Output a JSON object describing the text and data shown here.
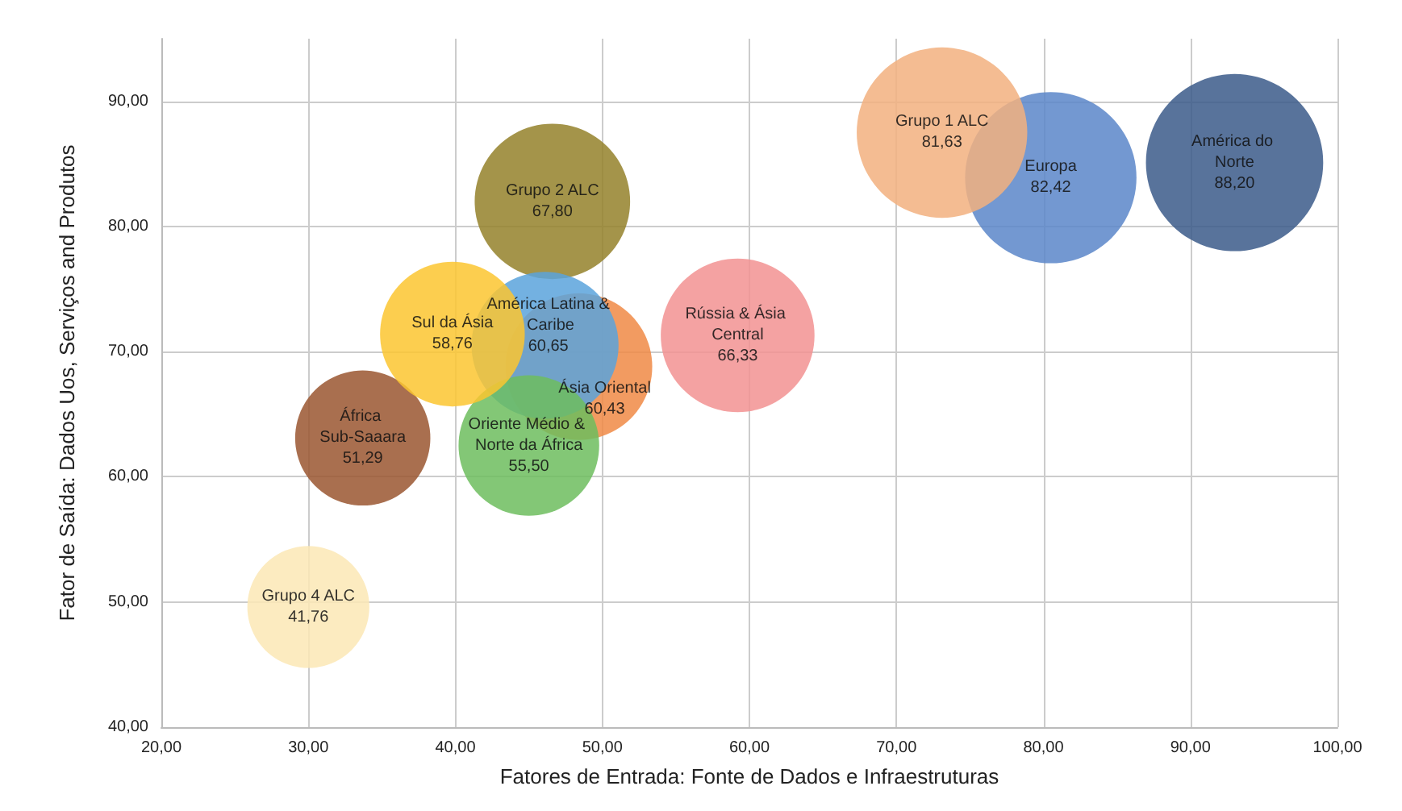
{
  "chart_data": {
    "type": "bubble",
    "xlabel": "Fatores de Entrada: Fonte de Dados e Infraestruturas",
    "ylabel": "Fator de Saída: Dados Uos, Serviços and Produtos",
    "xlim": [
      20,
      100
    ],
    "xticks": [
      {
        "value": 20,
        "label": "20,00"
      },
      {
        "value": 30,
        "label": "30,00"
      },
      {
        "value": 40,
        "label": "40,00"
      },
      {
        "value": 50,
        "label": "50,00"
      },
      {
        "value": 60,
        "label": "60,00"
      },
      {
        "value": 70,
        "label": "70,00"
      },
      {
        "value": 80,
        "label": "80,00"
      },
      {
        "value": 90,
        "label": "90,00"
      },
      {
        "value": 100,
        "label": "100,00"
      }
    ],
    "ylim": [
      40,
      95
    ],
    "yticks": [
      {
        "value": 40,
        "label": "40,00"
      },
      {
        "value": 50,
        "label": "50,00"
      },
      {
        "value": 60,
        "label": "60,00"
      },
      {
        "value": 70,
        "label": "70,00"
      },
      {
        "value": 80,
        "label": "80,00"
      },
      {
        "value": 90,
        "label": "90,00"
      }
    ],
    "grid": true,
    "legend": false,
    "series": [
      {
        "name": "Grupo 4 ALC",
        "color": "#fbe8b5",
        "x": [
          30.0
        ],
        "values": [
          49.6
        ],
        "sizes": [
          41.76
        ],
        "value_labels": [
          "41,76"
        ]
      },
      {
        "name": "África Sub-Saaara",
        "color": "#9a5630",
        "x": [
          33.7
        ],
        "values": [
          63.1
        ],
        "sizes": [
          51.29
        ],
        "value_labels": [
          "51,29"
        ]
      },
      {
        "name": "Grupo 2 ALC",
        "color": "#94812a",
        "x": [
          46.6
        ],
        "values": [
          82.0
        ],
        "sizes": [
          67.8
        ],
        "value_labels": [
          "67,80"
        ]
      },
      {
        "name": "Ásia Oriental",
        "color": "#f08a45",
        "x": [
          48.4
        ],
        "values": [
          68.8
        ],
        "sizes": [
          60.43
        ],
        "value_labels": [
          "60,43"
        ]
      },
      {
        "name": "América Latina & Caribe",
        "color": "#5ba3dc",
        "x": [
          46.1
        ],
        "values": [
          70.5
        ],
        "sizes": [
          60.65
        ],
        "value_labels": [
          "60,65"
        ]
      },
      {
        "name": "Oriente Médio & Norte da África",
        "color": "#6dbd5e",
        "x": [
          45.0
        ],
        "values": [
          62.5
        ],
        "sizes": [
          55.5
        ],
        "value_labels": [
          "55,50"
        ]
      },
      {
        "name": "Sul da Ásia",
        "color": "#fcc630",
        "x": [
          39.8
        ],
        "values": [
          71.4
        ],
        "sizes": [
          58.76
        ],
        "value_labels": [
          "58,76"
        ]
      },
      {
        "name": "Rússia & Ásia Central",
        "color": "#f29292",
        "x": [
          59.2
        ],
        "values": [
          71.3
        ],
        "sizes": [
          66.33
        ],
        "value_labels": [
          "66,33"
        ]
      },
      {
        "name": "Europa",
        "color": "#5a86c9",
        "x": [
          80.5
        ],
        "values": [
          83.9
        ],
        "sizes": [
          82.42
        ],
        "value_labels": [
          "82,42"
        ]
      },
      {
        "name": "Grupo 1 ALC",
        "color": "#f2b07f",
        "x": [
          73.1
        ],
        "values": [
          87.5
        ],
        "sizes": [
          81.63
        ],
        "value_labels": [
          "81,63"
        ]
      },
      {
        "name": "América do Norte",
        "color": "#3b5a8a",
        "x": [
          93.0
        ],
        "values": [
          85.1
        ],
        "sizes": [
          88.2
        ],
        "value_labels": [
          "88,20"
        ]
      }
    ]
  }
}
